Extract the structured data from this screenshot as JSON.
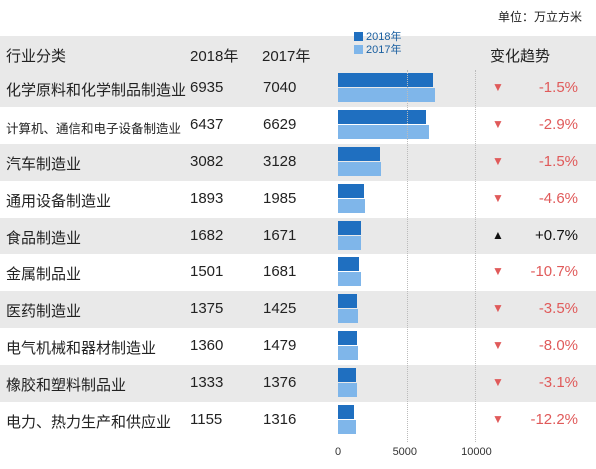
{
  "unit_label": "单位：万立方米",
  "headers": {
    "category": "行业分类",
    "y2018": "2018年",
    "y2017": "2017年",
    "trend": "变化趋势"
  },
  "legend": {
    "y2018": "2018年",
    "y2017": "2017年"
  },
  "colors": {
    "bar2018": "#1f6fc0",
    "bar2017": "#7fb6ea",
    "down": "#e05a5a",
    "up": "#111111"
  },
  "chart_data": {
    "type": "bar",
    "orientation": "horizontal",
    "categories": [
      "化学原料和化学制品制造业",
      "计算机、通信和电子设备制造业",
      "汽车制造业",
      "通用设备制造业",
      "食品制造业",
      "金属制品业",
      "医药制造业",
      "电气机械和器材制造业",
      "橡胶和塑料制品业",
      "电力、热力生产和供应业"
    ],
    "series": [
      {
        "name": "2018年",
        "values": [
          6935,
          6437,
          3082,
          1893,
          1682,
          1501,
          1375,
          1360,
          1333,
          1155
        ]
      },
      {
        "name": "2017年",
        "values": [
          7040,
          6629,
          3128,
          1985,
          1671,
          1681,
          1425,
          1479,
          1376,
          1316
        ]
      }
    ],
    "changes": [
      "-1.5%",
      "-2.9%",
      "-1.5%",
      "-4.6%",
      "+0.7%",
      "-10.7%",
      "-3.5%",
      "-8.0%",
      "-3.1%",
      "-12.2%"
    ],
    "directions": [
      "down",
      "down",
      "down",
      "down",
      "up",
      "down",
      "down",
      "down",
      "down",
      "down"
    ],
    "xlim": [
      0,
      10000
    ],
    "xticks": [
      "0",
      "5000",
      "10000"
    ]
  }
}
